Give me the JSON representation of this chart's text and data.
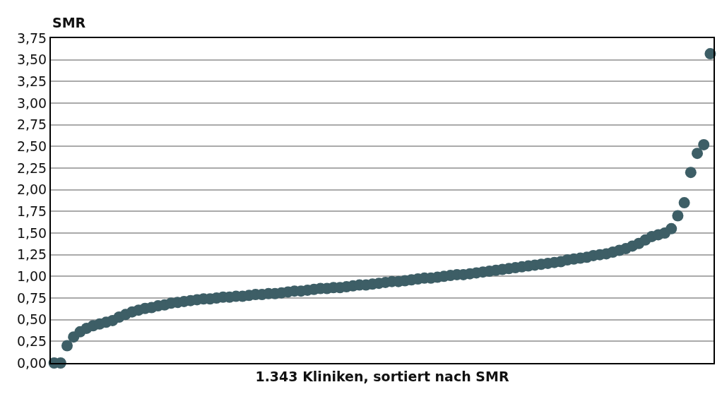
{
  "chart_data": {
    "type": "scatter",
    "xlabel": "1.343 Kliniken, sortiert nach SMR",
    "ylabel": "SMR",
    "categories": [
      null,
      null,
      null,
      null,
      null,
      null,
      null,
      null,
      null,
      null,
      null,
      null,
      null,
      null,
      null,
      null,
      null,
      null,
      null,
      null,
      null,
      null,
      null,
      null,
      null,
      null,
      null,
      null,
      null,
      null,
      null,
      null,
      null,
      null,
      null,
      null,
      null,
      null,
      null,
      null,
      null,
      null,
      null,
      null,
      null,
      null,
      null,
      null,
      null,
      null,
      null,
      null,
      null,
      null,
      null,
      null,
      null,
      null,
      null,
      null,
      null,
      null,
      null,
      null,
      null,
      null,
      null,
      null,
      null,
      null,
      null,
      null,
      null,
      null,
      null,
      null,
      null,
      null,
      null,
      null,
      null,
      null,
      null,
      null,
      null,
      null,
      null,
      null,
      null,
      null,
      null,
      null,
      null,
      null,
      null,
      null,
      null,
      null,
      null,
      null,
      null,
      null
    ],
    "series": [
      {
        "color": "#3d5e66",
        "values": [
          0,
          0,
          0.2,
          0.3,
          0.36,
          0.4,
          0.43,
          0.45,
          0.47,
          0.49,
          0.53,
          0.56,
          0.59,
          0.61,
          0.63,
          0.64,
          0.66,
          0.67,
          0.69,
          0.7,
          0.71,
          0.72,
          0.73,
          0.74,
          0.74,
          0.75,
          0.76,
          0.76,
          0.77,
          0.77,
          0.78,
          0.79,
          0.79,
          0.8,
          0.8,
          0.81,
          0.82,
          0.83,
          0.83,
          0.84,
          0.85,
          0.86,
          0.86,
          0.87,
          0.87,
          0.88,
          0.89,
          0.9,
          0.9,
          0.91,
          0.92,
          0.93,
          0.94,
          0.94,
          0.95,
          0.96,
          0.97,
          0.98,
          0.98,
          0.99,
          1.0,
          1.01,
          1.02,
          1.02,
          1.03,
          1.04,
          1.05,
          1.06,
          1.07,
          1.08,
          1.09,
          1.1,
          1.11,
          1.12,
          1.13,
          1.14,
          1.15,
          1.16,
          1.17,
          1.19,
          1.2,
          1.21,
          1.22,
          1.24,
          1.25,
          1.26,
          1.28,
          1.3,
          1.32,
          1.35,
          1.38,
          1.42,
          1.46,
          1.48,
          1.5,
          1.55,
          1.7,
          1.85,
          2.2,
          2.42,
          2.52,
          3.57
        ]
      }
    ],
    "ylim": [
      0,
      3.75
    ],
    "yticks": [
      {
        "value": 0,
        "label": "0,00"
      },
      {
        "value": 0.25,
        "label": "0,25"
      },
      {
        "value": 0.5,
        "label": "0,50"
      },
      {
        "value": 0.75,
        "label": "0,75"
      },
      {
        "value": 1,
        "label": "1,00"
      },
      {
        "value": 1.25,
        "label": "1,25"
      },
      {
        "value": 1.5,
        "label": "1,50"
      },
      {
        "value": 1.75,
        "label": "1,75"
      },
      {
        "value": 2,
        "label": "2,00"
      },
      {
        "value": 2.25,
        "label": "2,25"
      },
      {
        "value": 2.5,
        "label": "2,50"
      },
      {
        "value": 2.75,
        "label": "2,75"
      },
      {
        "value": 3,
        "label": "3,00"
      },
      {
        "value": 3.25,
        "label": "3,25"
      },
      {
        "value": 3.5,
        "label": "3,50"
      },
      {
        "value": 3.75,
        "label": "3,75"
      }
    ],
    "grid": "y",
    "marker": "circle",
    "tick_labels": "y"
  }
}
